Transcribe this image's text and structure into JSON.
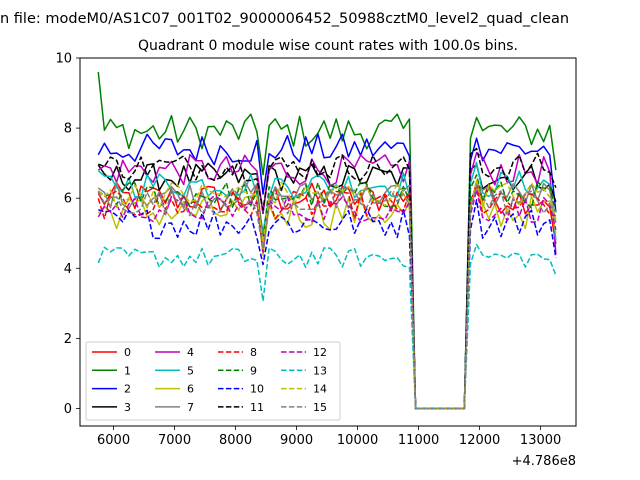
{
  "suptitle": "n file: modeM0/AS1C07_001T02_9000006452_50988cztM0_level2_quad_clean",
  "chart_data": {
    "type": "line",
    "title": "Quadrant 0 module wise count rates with 100.0s bins.",
    "xlabel": "",
    "ylabel": "",
    "offset_text": "+4.786e8",
    "xlim": [
      5450,
      13580
    ],
    "ylim": [
      -0.5,
      10.0
    ],
    "xticks": [
      6000,
      7000,
      8000,
      9000,
      10000,
      11000,
      12000,
      13000
    ],
    "yticks": [
      0,
      2,
      4,
      6,
      8,
      10
    ],
    "grid": false,
    "legend_placement": "lower-left",
    "x": {
      "start": 5750,
      "step": 100,
      "count": 76
    },
    "gap": {
      "from": 10850,
      "to": 11850
    },
    "series": [
      {
        "name": "0",
        "color": "#ff0000",
        "dash": "solid",
        "base": 6.0,
        "amp": 0.45,
        "tail_end": 4.7
      },
      {
        "name": "1",
        "color": "#008000",
        "dash": "solid",
        "base": 7.9,
        "amp": 0.5,
        "tail_end": 6.8,
        "first": 9.6
      },
      {
        "name": "2",
        "color": "#0000ff",
        "dash": "solid",
        "base": 7.4,
        "amp": 0.45,
        "tail_end": 5.6
      },
      {
        "name": "3",
        "color": "#000000",
        "dash": "solid",
        "base": 6.6,
        "amp": 0.4,
        "tail_end": 5.9
      },
      {
        "name": "4",
        "color": "#bf00bf",
        "dash": "solid",
        "base": 6.8,
        "amp": 0.45,
        "tail_end": 4.4
      },
      {
        "name": "5",
        "color": "#00bfbf",
        "dash": "solid",
        "base": 6.4,
        "amp": 0.4,
        "tail_end": 4.8
      },
      {
        "name": "6",
        "color": "#bfbf00",
        "dash": "solid",
        "base": 5.6,
        "amp": 0.5,
        "tail_end": 5.0
      },
      {
        "name": "7",
        "color": "#808080",
        "dash": "solid",
        "base": 6.1,
        "amp": 0.4,
        "tail_end": 5.3
      },
      {
        "name": "8",
        "color": "#ff0000",
        "dash": "dashed",
        "base": 5.8,
        "amp": 0.4,
        "tail_end": 5.5
      },
      {
        "name": "9",
        "color": "#008000",
        "dash": "dashed",
        "base": 6.1,
        "amp": 0.4,
        "tail_end": 5.6
      },
      {
        "name": "10",
        "color": "#0000ff",
        "dash": "dashed",
        "base": 5.3,
        "amp": 0.45,
        "tail_end": 4.3
      },
      {
        "name": "11",
        "color": "#000000",
        "dash": "dashed",
        "base": 6.9,
        "amp": 0.4,
        "tail_end": 6.3
      },
      {
        "name": "12",
        "color": "#bf00bf",
        "dash": "dashed",
        "base": 5.7,
        "amp": 0.4,
        "tail_end": 5.1
      },
      {
        "name": "13",
        "color": "#00bfbf",
        "dash": "dashed",
        "base": 4.3,
        "amp": 0.3,
        "tail_end": 3.8
      },
      {
        "name": "14",
        "color": "#bfbf00",
        "dash": "dashed",
        "base": 6.1,
        "amp": 0.4,
        "tail_end": 5.4
      },
      {
        "name": "15",
        "color": "#808080",
        "dash": "dashed",
        "base": 5.9,
        "amp": 0.4,
        "tail_end": 5.6
      }
    ]
  }
}
